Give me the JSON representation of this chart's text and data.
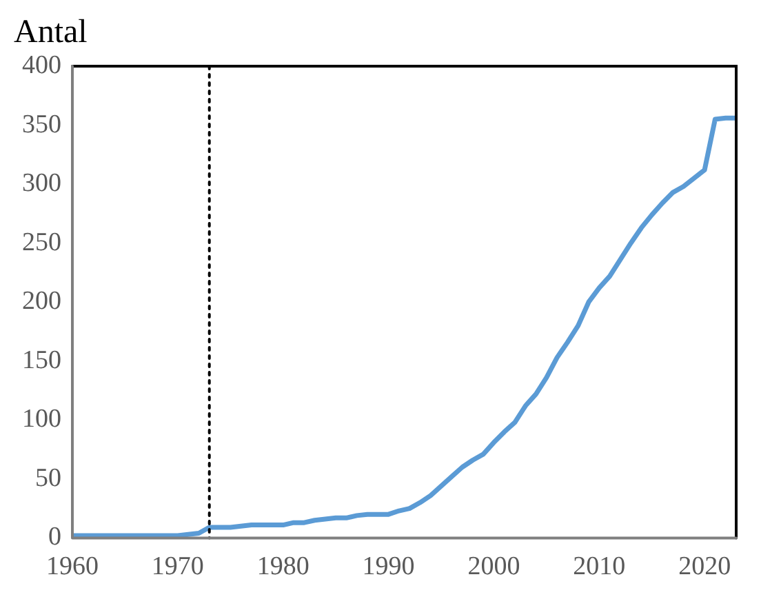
{
  "chart_data": {
    "type": "line",
    "ylabel": "Antal",
    "x": [
      1960,
      1961,
      1962,
      1963,
      1964,
      1965,
      1966,
      1967,
      1968,
      1969,
      1970,
      1971,
      1972,
      1973,
      1974,
      1975,
      1976,
      1977,
      1978,
      1979,
      1980,
      1981,
      1982,
      1983,
      1984,
      1985,
      1986,
      1987,
      1988,
      1989,
      1990,
      1991,
      1992,
      1993,
      1994,
      1995,
      1996,
      1997,
      1998,
      1999,
      2000,
      2001,
      2002,
      2003,
      2004,
      2005,
      2006,
      2007,
      2008,
      2009,
      2010,
      2011,
      2012,
      2013,
      2014,
      2015,
      2016,
      2017,
      2018,
      2019,
      2020,
      2021,
      2022,
      2023
    ],
    "series": [
      {
        "color": "#5b9bd5",
        "values": [
          2,
          2,
          2,
          2,
          2,
          2,
          2,
          2,
          2,
          2,
          2,
          3,
          4,
          9,
          9,
          9,
          10,
          11,
          11,
          11,
          11,
          13,
          13,
          15,
          16,
          17,
          17,
          19,
          20,
          20,
          20,
          23,
          25,
          30,
          36,
          44,
          52,
          60,
          66,
          71,
          81,
          90,
          98,
          112,
          122,
          136,
          153,
          166,
          180,
          200,
          212,
          222,
          236,
          250,
          263,
          274,
          284,
          293,
          298,
          305,
          312,
          355,
          356,
          356
        ]
      }
    ],
    "xlim": [
      1960,
      2023
    ],
    "xticks": [
      1960,
      1970,
      1980,
      1990,
      2000,
      2010,
      2020
    ],
    "ylim": [
      0,
      400
    ],
    "yticks": [
      0,
      50,
      100,
      150,
      200,
      250,
      300,
      350,
      400
    ],
    "ref_lines": [
      {
        "axis": "x",
        "value": 1973,
        "color": "#000000",
        "line_style": "dotted"
      }
    ],
    "grid": false,
    "legend": false,
    "marker": "none",
    "line_style": "solid"
  }
}
